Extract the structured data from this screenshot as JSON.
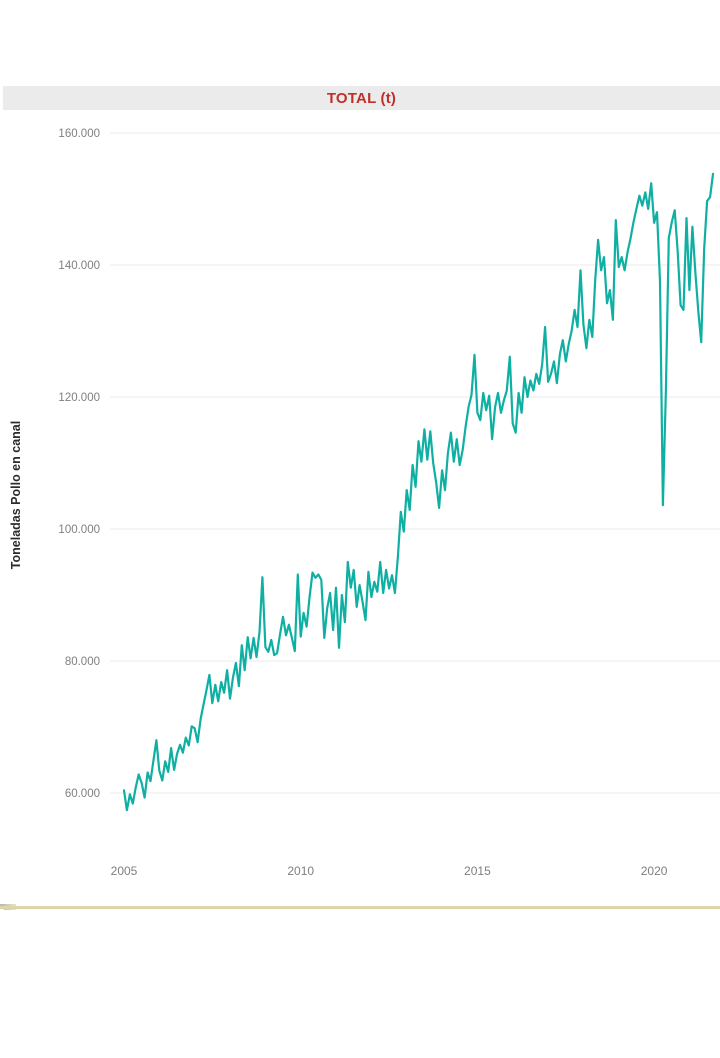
{
  "chart": {
    "title": "TOTAL (t)",
    "y_axis_title": "Toneladas Pollo en canal",
    "colors": {
      "title_red": "#c0302b",
      "band_gray": "#ebebeb",
      "line_teal": "#0fb0a3",
      "grid_gray": "#f2f2f2",
      "tick_gray": "#7f7f7f",
      "card_border_tan": "#ddd6a8"
    }
  },
  "chart_data": {
    "type": "line",
    "title": "TOTAL (t)",
    "xlabel": "",
    "ylabel": "Toneladas Pollo en canal",
    "x_domain": [
      "2005-01",
      "2021-09"
    ],
    "frequency": "monthly",
    "x_tick_labels": [
      "2005",
      "2010",
      "2015",
      "2020"
    ],
    "y_tick_labels": [
      "160.000",
      "140.000",
      "120.000",
      "100.000",
      "80.000",
      "60.000"
    ],
    "y_tick_values": [
      160000,
      140000,
      120000,
      100000,
      80000,
      60000
    ],
    "ylim": [
      55000,
      165000
    ],
    "grid": true,
    "legend": "none",
    "series": [
      {
        "name": "TOTAL (t)",
        "start_year": 2005,
        "values": [
          60400,
          57400,
          59800,
          58400,
          60900,
          62800,
          61500,
          59300,
          63100,
          61800,
          64900,
          68000,
          63400,
          61900,
          64800,
          63200,
          66800,
          63500,
          65900,
          67300,
          66100,
          68400,
          67200,
          70100,
          69800,
          67700,
          71200,
          73400,
          75600,
          77900,
          73600,
          76400,
          73900,
          76800,
          75200,
          78600,
          74300,
          77500,
          79700,
          76200,
          82400,
          78600,
          83600,
          80400,
          83500,
          80600,
          84400,
          92700,
          82100,
          81400,
          83200,
          80900,
          81200,
          84100,
          86700,
          83900,
          85500,
          83500,
          81500,
          93100,
          83700,
          87300,
          85200,
          89600,
          93400,
          92600,
          93100,
          92300,
          83500,
          88000,
          90300,
          84700,
          91100,
          82000,
          90000,
          85900,
          95000,
          91100,
          93800,
          88200,
          91500,
          89000,
          86200,
          93500,
          89700,
          92000,
          90500,
          95000,
          90300,
          93800,
          91000,
          93000,
          90300,
          95800,
          102600,
          99600,
          105900,
          102900,
          109700,
          106400,
          113300,
          110200,
          115100,
          110500,
          114800,
          110000,
          107000,
          103200,
          108900,
          105900,
          111500,
          114600,
          110200,
          113600,
          109700,
          112000,
          115500,
          118500,
          120300,
          126400,
          117600,
          116500,
          120600,
          118000,
          120200,
          113600,
          118500,
          120600,
          117600,
          119500,
          121000,
          126100,
          116000,
          114600,
          120600,
          117600,
          123000,
          120000,
          122500,
          121000,
          123500,
          122000,
          125000,
          130600,
          122300,
          123500,
          125400,
          122100,
          126500,
          128600,
          125400,
          128000,
          130000,
          133200,
          130600,
          139200,
          131000,
          127400,
          131700,
          129100,
          137700,
          143800,
          139200,
          141200,
          134200,
          136200,
          131700,
          146800,
          139700,
          141200,
          139200,
          142000,
          144000,
          146500,
          148500,
          150500,
          149000,
          151000,
          148500,
          152400,
          146400,
          148000,
          137500,
          103600,
          121000,
          144100,
          146500,
          148300,
          142000,
          133900,
          133200,
          147100,
          136200,
          145800,
          139000,
          133000,
          128300,
          142500,
          149700,
          150300,
          153800
        ]
      }
    ]
  }
}
